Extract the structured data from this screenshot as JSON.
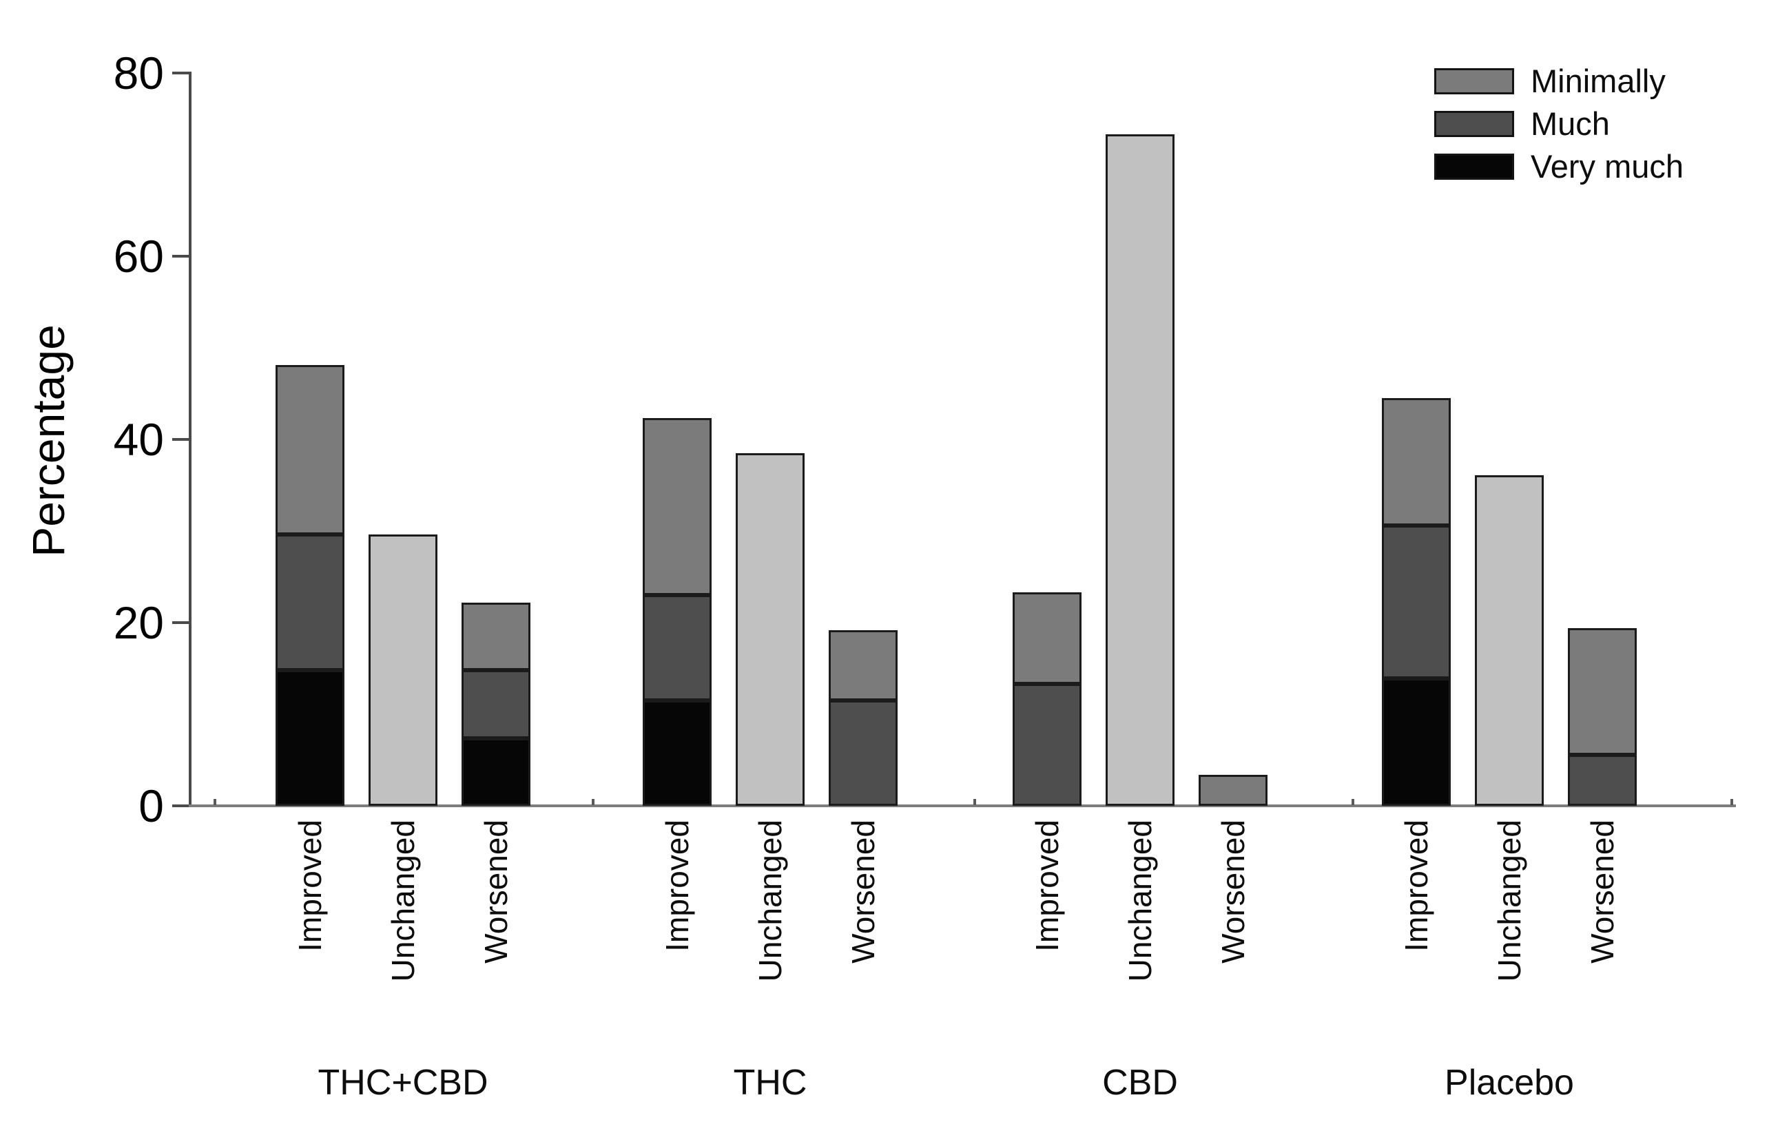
{
  "figure": {
    "ylabel": "Percentage"
  },
  "chart_data": {
    "type": "bar",
    "stacked": true,
    "title": "",
    "xlabel": "",
    "ylabel": "Percentage",
    "ylim": [
      0,
      80
    ],
    "yticks": [
      "0",
      "20",
      "40",
      "60",
      "80"
    ],
    "grid": false,
    "legend": {
      "position": "top-right",
      "entries": [
        {
          "label": "Minimally",
          "color": "#7b7b7b"
        },
        {
          "label": "Much",
          "color": "#4e4e4e"
        },
        {
          "label": "Very much",
          "color": "#060606"
        }
      ]
    },
    "colors": {
      "very_much": "#060606",
      "much": "#4e4e4e",
      "minimally": "#7b7b7b",
      "unchanged": "#c1c1c1",
      "bar_border": "#1b1b1b",
      "axis": "#4a4a4a"
    },
    "groups": [
      {
        "label": "THC+CBD",
        "bars": [
          {
            "label": "Improved",
            "total": 48.1,
            "segments": [
              {
                "name": "Very much",
                "value": 14.8,
                "color": "#060606"
              },
              {
                "name": "Much",
                "value": 14.8,
                "color": "#4e4e4e"
              },
              {
                "name": "Minimally",
                "value": 18.5,
                "color": "#7b7b7b"
              }
            ]
          },
          {
            "label": "Unchanged",
            "total": 29.6,
            "segments": [
              {
                "name": "Unchanged",
                "value": 29.6,
                "color": "#c1c1c1"
              }
            ]
          },
          {
            "label": "Worsened",
            "total": 22.2,
            "segments": [
              {
                "name": "Very much",
                "value": 7.4,
                "color": "#060606"
              },
              {
                "name": "Much",
                "value": 7.4,
                "color": "#4e4e4e"
              },
              {
                "name": "Minimally",
                "value": 7.4,
                "color": "#7b7b7b"
              }
            ]
          }
        ]
      },
      {
        "label": "THC",
        "bars": [
          {
            "label": "Improved",
            "total": 42.3,
            "segments": [
              {
                "name": "Very much",
                "value": 11.5,
                "color": "#060606"
              },
              {
                "name": "Much",
                "value": 11.5,
                "color": "#4e4e4e"
              },
              {
                "name": "Minimally",
                "value": 19.3,
                "color": "#7b7b7b"
              }
            ]
          },
          {
            "label": "Unchanged",
            "total": 38.5,
            "segments": [
              {
                "name": "Unchanged",
                "value": 38.5,
                "color": "#c1c1c1"
              }
            ]
          },
          {
            "label": "Worsened",
            "total": 19.2,
            "segments": [
              {
                "name": "Much",
                "value": 11.5,
                "color": "#4e4e4e"
              },
              {
                "name": "Minimally",
                "value": 7.7,
                "color": "#7b7b7b"
              }
            ]
          }
        ]
      },
      {
        "label": "CBD",
        "bars": [
          {
            "label": "Improved",
            "total": 23.3,
            "segments": [
              {
                "name": "Much",
                "value": 13.3,
                "color": "#4e4e4e"
              },
              {
                "name": "Minimally",
                "value": 10.0,
                "color": "#7b7b7b"
              }
            ]
          },
          {
            "label": "Unchanged",
            "total": 73.3,
            "segments": [
              {
                "name": "Unchanged",
                "value": 73.3,
                "color": "#c1c1c1"
              }
            ]
          },
          {
            "label": "Worsened",
            "total": 3.4,
            "segments": [
              {
                "name": "Minimally",
                "value": 3.4,
                "color": "#7b7b7b"
              }
            ]
          }
        ]
      },
      {
        "label": "Placebo",
        "bars": [
          {
            "label": "Improved",
            "total": 44.5,
            "segments": [
              {
                "name": "Very much",
                "value": 13.9,
                "color": "#060606"
              },
              {
                "name": "Much",
                "value": 16.7,
                "color": "#4e4e4e"
              },
              {
                "name": "Minimally",
                "value": 13.9,
                "color": "#7b7b7b"
              }
            ]
          },
          {
            "label": "Unchanged",
            "total": 36.1,
            "segments": [
              {
                "name": "Unchanged",
                "value": 36.1,
                "color": "#c1c1c1"
              }
            ]
          },
          {
            "label": "Worsened",
            "total": 19.4,
            "segments": [
              {
                "name": "Much",
                "value": 5.6,
                "color": "#4e4e4e"
              },
              {
                "name": "Minimally",
                "value": 13.8,
                "color": "#7b7b7b"
              }
            ]
          }
        ]
      }
    ]
  }
}
